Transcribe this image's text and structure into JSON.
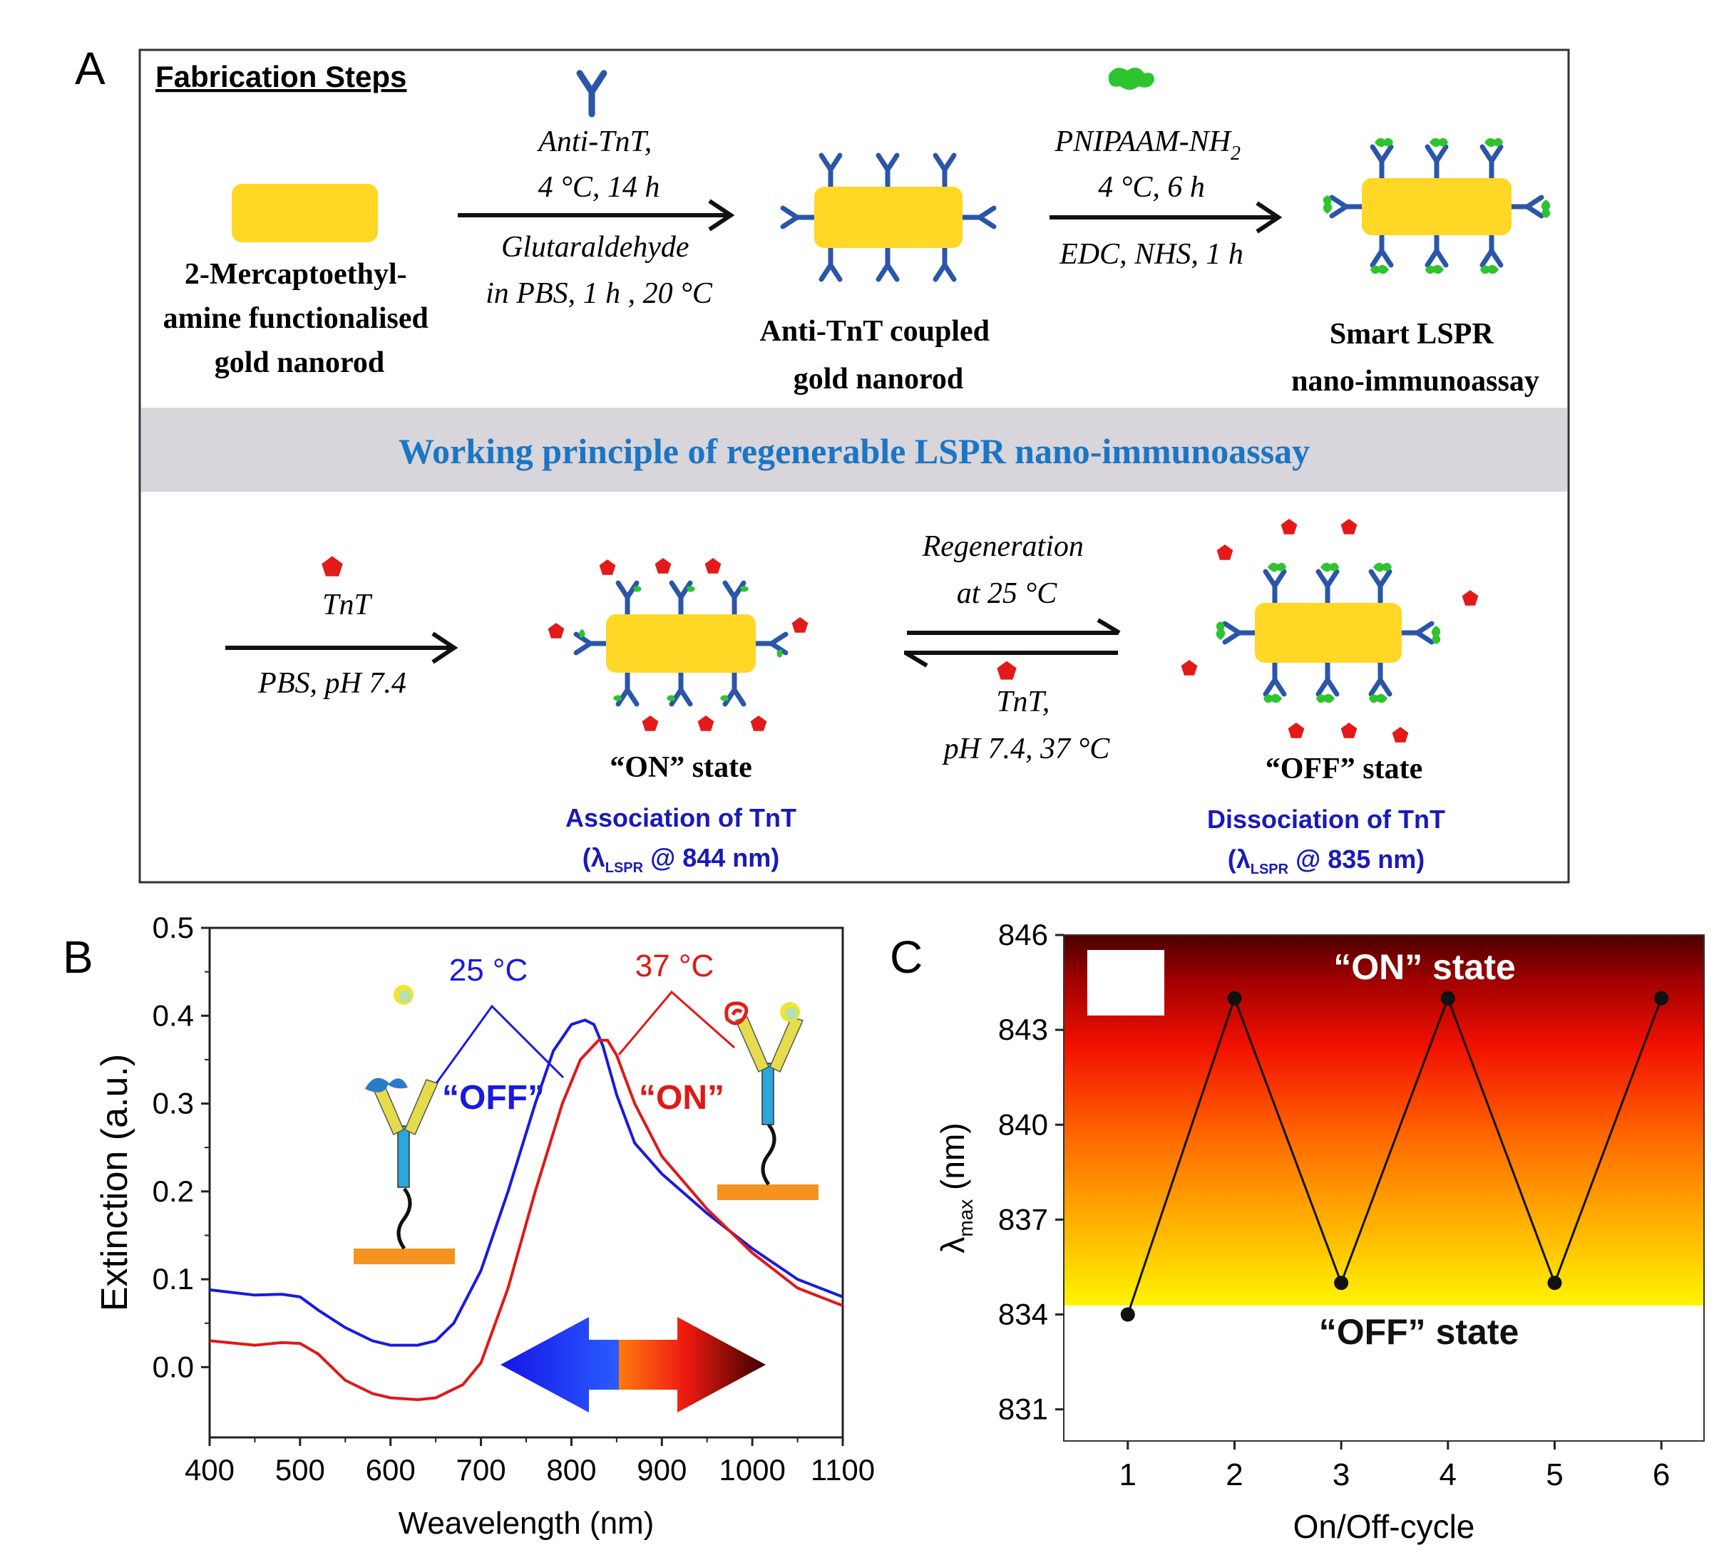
{
  "panels": {
    "a": {
      "letter": "A",
      "section_title": "Fabrication Steps",
      "nanorod1_label": [
        "2-Mercaptoethyl-",
        "amine functionalised",
        "gold nanorod"
      ],
      "step1_above": [
        "Anti-TnT,",
        "4 °C, 14 h"
      ],
      "step1_below": [
        "Glutaraldehyde",
        "in PBS, 1 h , 20 °C"
      ],
      "nanorod2_label": [
        "Anti-TnT  coupled",
        "gold nanorod"
      ],
      "step2_above": [
        "PNIPAAM-NH",
        "2",
        "4 °C, 6 h"
      ],
      "step2_below": "EDC, NHS, 1 h",
      "nanorod3_label": [
        "Smart  LSPR",
        "nano-immunoassay"
      ],
      "banner": "Working principle of regenerable LSPR nano-immunoassay",
      "step3_above": "TnT",
      "step3_below": "PBS, pH 7.4",
      "on_state": "“ON” state",
      "on_caption": "Association of TnT",
      "on_lspr": [
        "(λ",
        "LSPR",
        " @ 844 nm)"
      ],
      "regen_above": [
        "Regeneration",
        "at 25 °C"
      ],
      "regen_below": [
        "TnT,",
        "pH 7.4, 37 °C"
      ],
      "off_state": "“OFF” state",
      "off_caption": "Dissociation of TnT",
      "off_lspr": [
        "(λ",
        "LSPR",
        " @ 835 nm)"
      ]
    },
    "b": {
      "letter": "B",
      "temp_blue": "25 °C",
      "temp_red": "37 °C",
      "label_off": "“OFF”",
      "label_on": "“ON”"
    },
    "c": {
      "letter": "C",
      "on_state": "“ON” state",
      "off_state": "“OFF” state"
    }
  },
  "chart_data": [
    {
      "type": "line",
      "xlabel": "Weavelength (nm)",
      "ylabel": "Extinction (a.u.)",
      "xlim": [
        400,
        1100
      ],
      "ylim": [
        -0.08,
        0.5
      ],
      "xticks": [
        400,
        500,
        600,
        700,
        800,
        900,
        1000,
        1100
      ],
      "yticks": [
        0.0,
        0.1,
        0.2,
        0.3,
        0.4,
        0.5
      ],
      "grid": false,
      "series": [
        {
          "color": "#1a1adf",
          "x": [
            400,
            450,
            480,
            500,
            520,
            550,
            580,
            600,
            630,
            650,
            670,
            700,
            730,
            760,
            780,
            800,
            815,
            825,
            835,
            850,
            870,
            900,
            950,
            1000,
            1050,
            1100
          ],
          "y": [
            0.088,
            0.082,
            0.083,
            0.08,
            0.065,
            0.045,
            0.03,
            0.025,
            0.025,
            0.03,
            0.05,
            0.11,
            0.2,
            0.3,
            0.36,
            0.39,
            0.395,
            0.39,
            0.365,
            0.31,
            0.255,
            0.22,
            0.175,
            0.135,
            0.1,
            0.08
          ]
        },
        {
          "color": "#e01818",
          "x": [
            400,
            450,
            480,
            500,
            520,
            550,
            580,
            600,
            630,
            650,
            680,
            700,
            730,
            760,
            790,
            810,
            830,
            840,
            850,
            870,
            900,
            950,
            1000,
            1050,
            1100
          ],
          "y": [
            0.03,
            0.025,
            0.028,
            0.027,
            0.015,
            -0.015,
            -0.03,
            -0.035,
            -0.037,
            -0.035,
            -0.02,
            0.005,
            0.09,
            0.2,
            0.3,
            0.35,
            0.372,
            0.372,
            0.355,
            0.3,
            0.24,
            0.18,
            0.13,
            0.09,
            0.07
          ]
        }
      ]
    },
    {
      "type": "line",
      "xlabel": "On/Off-cycle",
      "ylabel": "λmax (nm)",
      "xlim": [
        0.4,
        6.4
      ],
      "ylim": [
        830,
        846
      ],
      "xticks": [
        1,
        2,
        3,
        4,
        5,
        6
      ],
      "yticks": [
        831,
        834,
        837,
        840,
        843,
        846
      ],
      "grid": false,
      "series": [
        {
          "x": [
            1,
            2,
            3,
            4,
            5,
            6
          ],
          "y": [
            834,
            844,
            835,
            844,
            835,
            844
          ]
        }
      ]
    }
  ]
}
